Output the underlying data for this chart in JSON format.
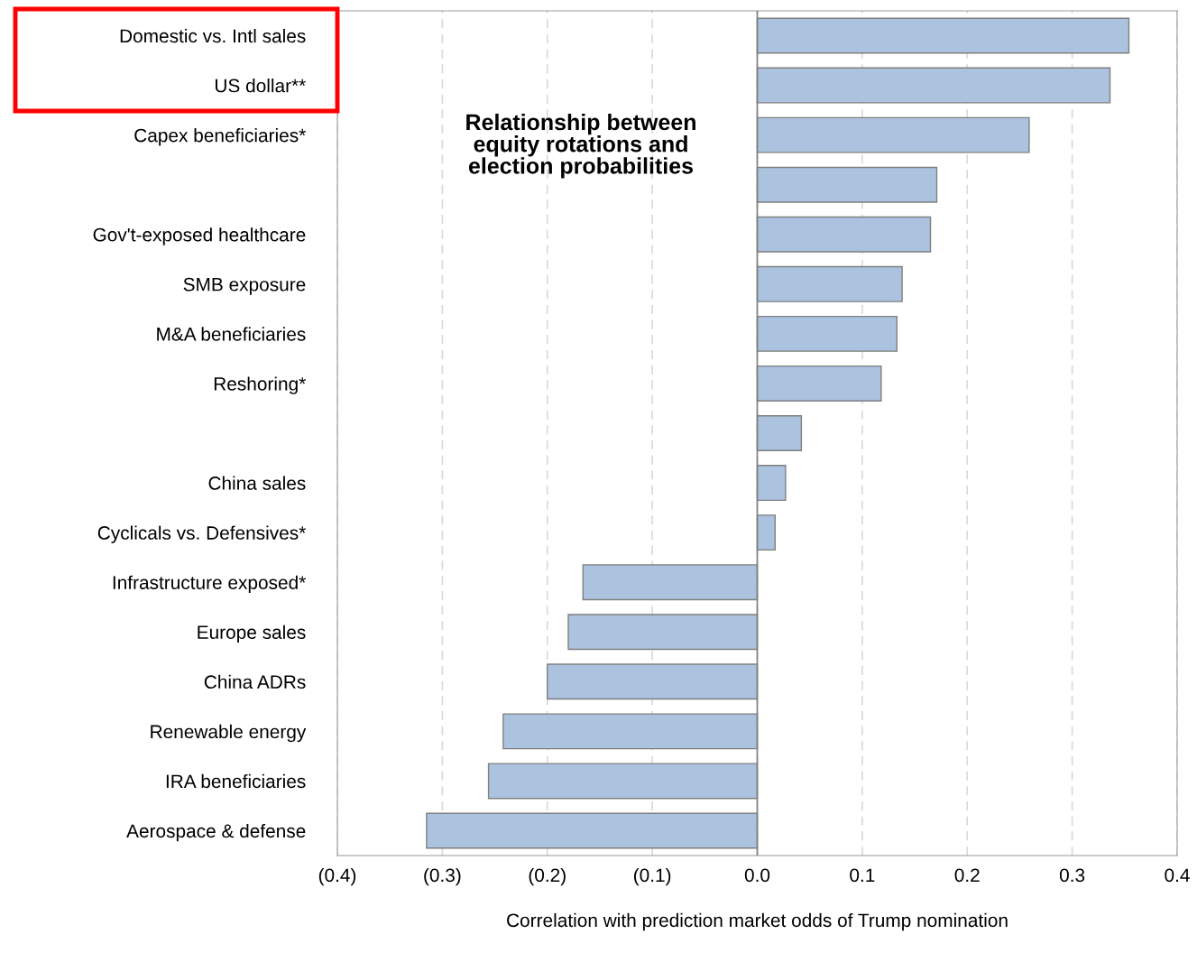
{
  "chart_data": {
    "type": "bar",
    "orientation": "horizontal",
    "title": "Relationship between\nequity rotations and\nelection probabilities",
    "xlabel": "Correlation with prediction market odds of Trump nomination",
    "categories": [
      "Domestic vs. Intl sales",
      "US dollar**",
      "Capex beneficiaries*",
      null,
      "Gov't-exposed healthcare",
      "SMB exposure",
      "M&A beneficiaries",
      "Reshoring*",
      null,
      "China sales",
      "Cyclicals vs. Defensives*",
      "Infrastructure exposed*",
      "Europe sales",
      "China ADRs",
      "Renewable energy",
      "IRA beneficiaries",
      "Aerospace & defense"
    ],
    "values": [
      0.354,
      0.336,
      0.259,
      0.171,
      0.165,
      0.138,
      0.133,
      0.118,
      0.042,
      0.027,
      0.017,
      -0.166,
      -0.18,
      -0.2,
      -0.242,
      -0.256,
      -0.315
    ],
    "color": "#abc3df",
    "xlim": [
      -0.4,
      0.4
    ],
    "xticks": [
      {
        "value": -0.4,
        "label": "(0.4)"
      },
      {
        "value": -0.3,
        "label": "(0.3)"
      },
      {
        "value": -0.2,
        "label": "(0.2)"
      },
      {
        "value": -0.1,
        "label": "(0.1)"
      },
      {
        "value": 0.0,
        "label": "0.0"
      },
      {
        "value": 0.1,
        "label": "0.1"
      },
      {
        "value": 0.2,
        "label": "0.2"
      },
      {
        "value": 0.3,
        "label": "0.3"
      },
      {
        "value": 0.4,
        "label": "0.4"
      }
    ],
    "grid": "x",
    "legend": false
  }
}
